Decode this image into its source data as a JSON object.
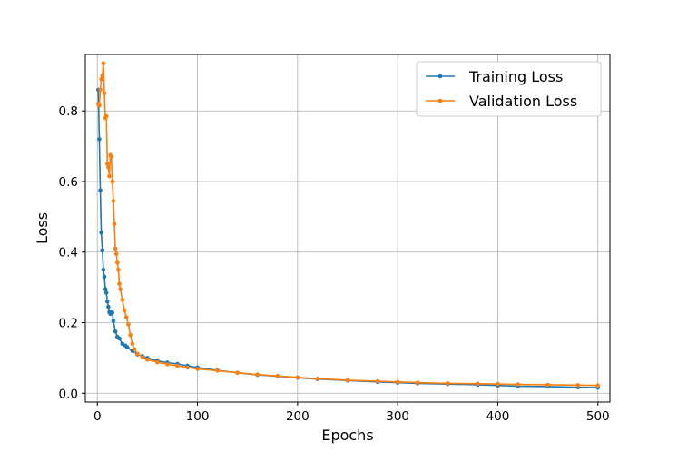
{
  "chart_data": {
    "type": "line",
    "xlabel": "Epochs",
    "ylabel": "Loss",
    "xlim": [
      -12,
      512
    ],
    "ylim": [
      -0.025,
      0.96
    ],
    "xticks": [
      0,
      100,
      200,
      300,
      400,
      500
    ],
    "yticks": [
      0.0,
      0.2,
      0.4,
      0.6,
      0.8
    ],
    "xtick_labels": [
      "0",
      "100",
      "200",
      "300",
      "400",
      "500"
    ],
    "ytick_labels": [
      "0.0",
      "0.2",
      "0.4",
      "0.6",
      "0.8"
    ],
    "grid": true,
    "legend_position": "top-right",
    "series": [
      {
        "name": "Training Loss",
        "color": "#1f77b4",
        "marker": "dot",
        "x": [
          1,
          2,
          3,
          4,
          5,
          6,
          7,
          8,
          9,
          10,
          11,
          12,
          13,
          14,
          15,
          16,
          18,
          20,
          22,
          25,
          28,
          30,
          35,
          40,
          45,
          50,
          60,
          70,
          80,
          90,
          100,
          120,
          140,
          160,
          180,
          200,
          220,
          250,
          280,
          300,
          320,
          350,
          380,
          400,
          420,
          450,
          480,
          500
        ],
        "values": [
          0.86,
          0.72,
          0.575,
          0.455,
          0.405,
          0.35,
          0.33,
          0.295,
          0.285,
          0.26,
          0.245,
          0.23,
          0.225,
          0.23,
          0.228,
          0.205,
          0.175,
          0.16,
          0.155,
          0.14,
          0.135,
          0.13,
          0.12,
          0.11,
          0.105,
          0.1,
          0.092,
          0.087,
          0.083,
          0.078,
          0.073,
          0.065,
          0.058,
          0.052,
          0.048,
          0.044,
          0.04,
          0.036,
          0.032,
          0.03,
          0.028,
          0.026,
          0.024,
          0.022,
          0.02,
          0.019,
          0.017,
          0.016
        ]
      },
      {
        "name": "Validation Loss",
        "color": "#ff7f0e",
        "marker": "dot",
        "x": [
          1,
          2,
          3,
          4,
          5,
          6,
          7,
          8,
          9,
          10,
          11,
          12,
          13,
          14,
          15,
          16,
          17,
          18,
          19,
          20,
          21,
          22,
          23,
          25,
          27,
          29,
          31,
          33,
          35,
          37,
          40,
          45,
          50,
          60,
          70,
          80,
          90,
          100,
          120,
          140,
          160,
          180,
          200,
          220,
          250,
          280,
          300,
          320,
          350,
          380,
          400,
          420,
          450,
          480,
          500
        ],
        "values": [
          0.82,
          0.815,
          0.86,
          0.89,
          0.9,
          0.935,
          0.85,
          0.78,
          0.785,
          0.65,
          0.64,
          0.615,
          0.675,
          0.67,
          0.6,
          0.545,
          0.48,
          0.41,
          0.395,
          0.37,
          0.35,
          0.31,
          0.295,
          0.265,
          0.235,
          0.215,
          0.195,
          0.165,
          0.14,
          0.125,
          0.112,
          0.102,
          0.095,
          0.088,
          0.082,
          0.078,
          0.073,
          0.069,
          0.064,
          0.058,
          0.053,
          0.049,
          0.045,
          0.041,
          0.037,
          0.034,
          0.032,
          0.03,
          0.028,
          0.027,
          0.026,
          0.025,
          0.024,
          0.023,
          0.022
        ]
      }
    ]
  }
}
